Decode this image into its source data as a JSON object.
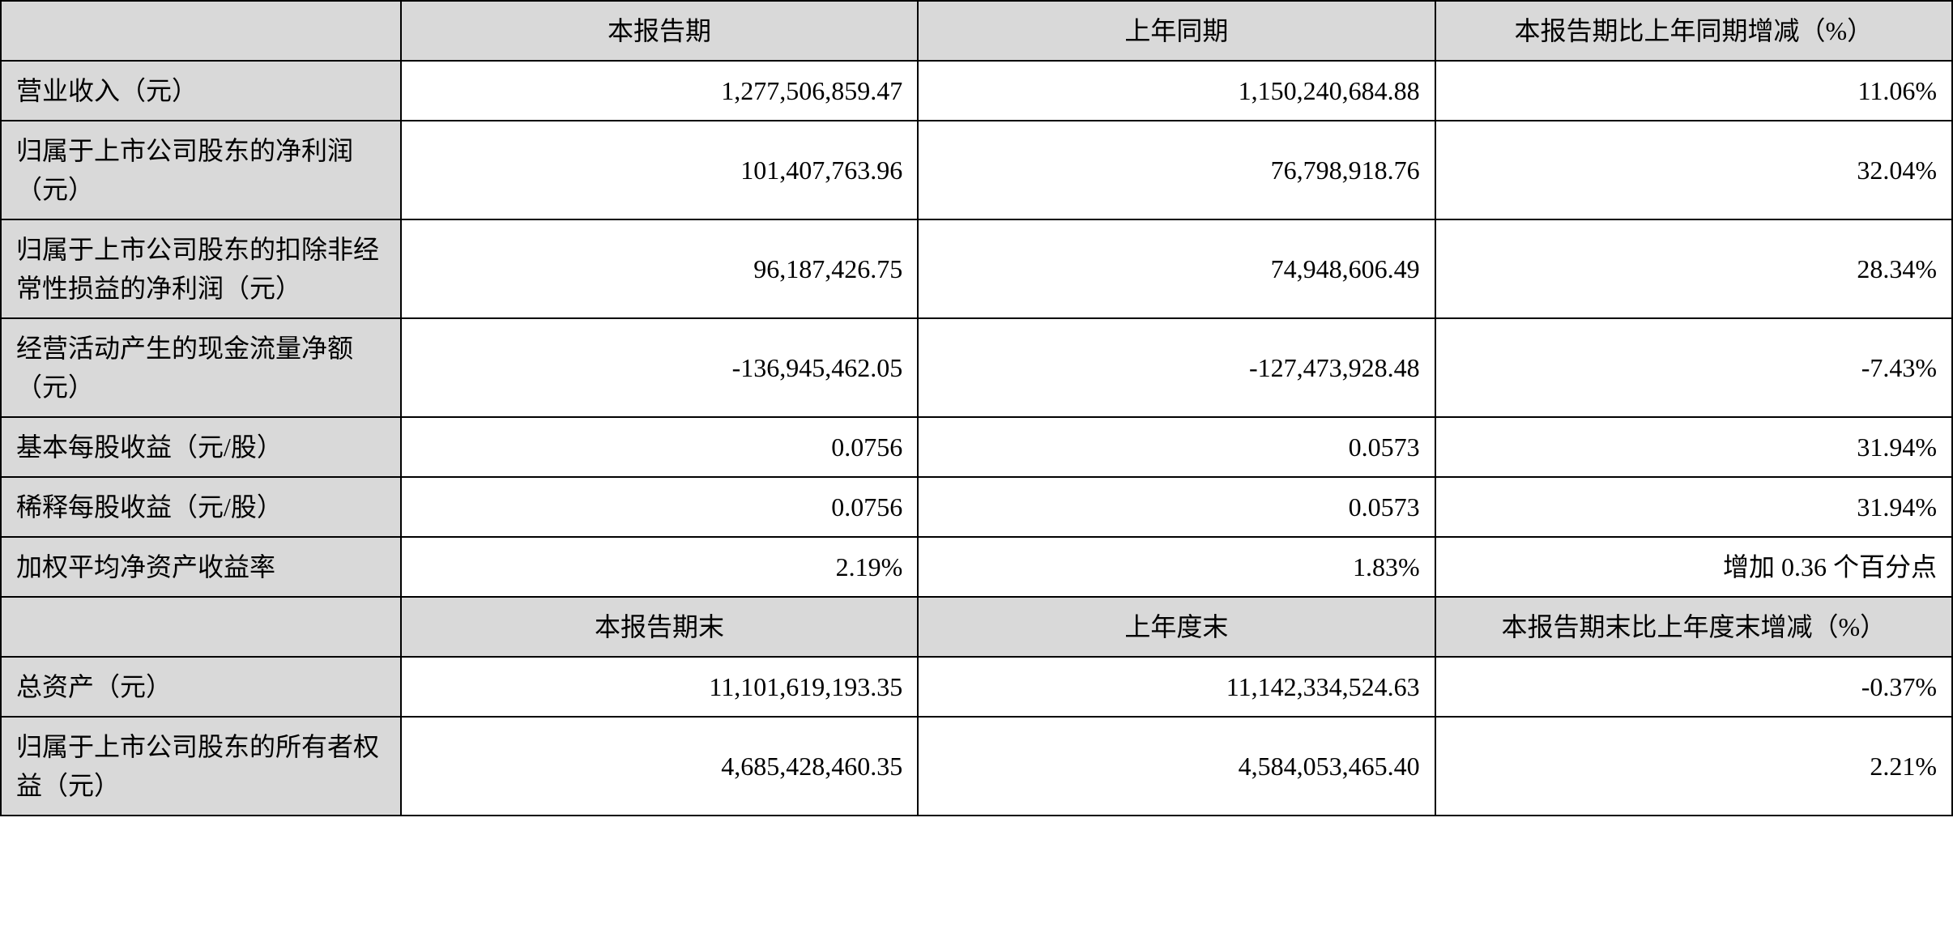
{
  "table": {
    "type": "table",
    "background_color": "#ffffff",
    "header_background": "#d9d9d9",
    "border_color": "#000000",
    "font_family": "SimSun",
    "font_size": 32,
    "columns": [
      {
        "key": "label",
        "width_pct": 20.5,
        "align": "left"
      },
      {
        "key": "current",
        "width_pct": 26.5,
        "align": "right"
      },
      {
        "key": "previous",
        "width_pct": 26.5,
        "align": "right"
      },
      {
        "key": "change",
        "width_pct": 26.5,
        "align": "right"
      }
    ],
    "header1": {
      "blank": "",
      "col1": "本报告期",
      "col2": "上年同期",
      "col3": "本报告期比上年同期增减（%）"
    },
    "rows_section1": [
      {
        "label": "营业收入（元）",
        "current": "1,277,506,859.47",
        "previous": "1,150,240,684.88",
        "change": "11.06%"
      },
      {
        "label": "归属于上市公司股东的净利润（元）",
        "current": "101,407,763.96",
        "previous": "76,798,918.76",
        "change": "32.04%"
      },
      {
        "label": "归属于上市公司股东的扣除非经常性损益的净利润（元）",
        "current": "96,187,426.75",
        "previous": "74,948,606.49",
        "change": "28.34%"
      },
      {
        "label": "经营活动产生的现金流量净额（元）",
        "current": "-136,945,462.05",
        "previous": "-127,473,928.48",
        "change": "-7.43%"
      },
      {
        "label": "基本每股收益（元/股）",
        "current": "0.0756",
        "previous": "0.0573",
        "change": "31.94%"
      },
      {
        "label": "稀释每股收益（元/股）",
        "current": "0.0756",
        "previous": "0.0573",
        "change": "31.94%"
      },
      {
        "label": "加权平均净资产收益率",
        "current": "2.19%",
        "previous": "1.83%",
        "change": "增加 0.36 个百分点"
      }
    ],
    "header2": {
      "blank": "",
      "col1": "本报告期末",
      "col2": "上年度末",
      "col3": "本报告期末比上年度末增减（%）"
    },
    "rows_section2": [
      {
        "label": "总资产（元）",
        "current": "11,101,619,193.35",
        "previous": "11,142,334,524.63",
        "change": "-0.37%"
      },
      {
        "label": "归属于上市公司股东的所有者权益（元）",
        "current": "4,685,428,460.35",
        "previous": "4,584,053,465.40",
        "change": "2.21%"
      }
    ]
  }
}
